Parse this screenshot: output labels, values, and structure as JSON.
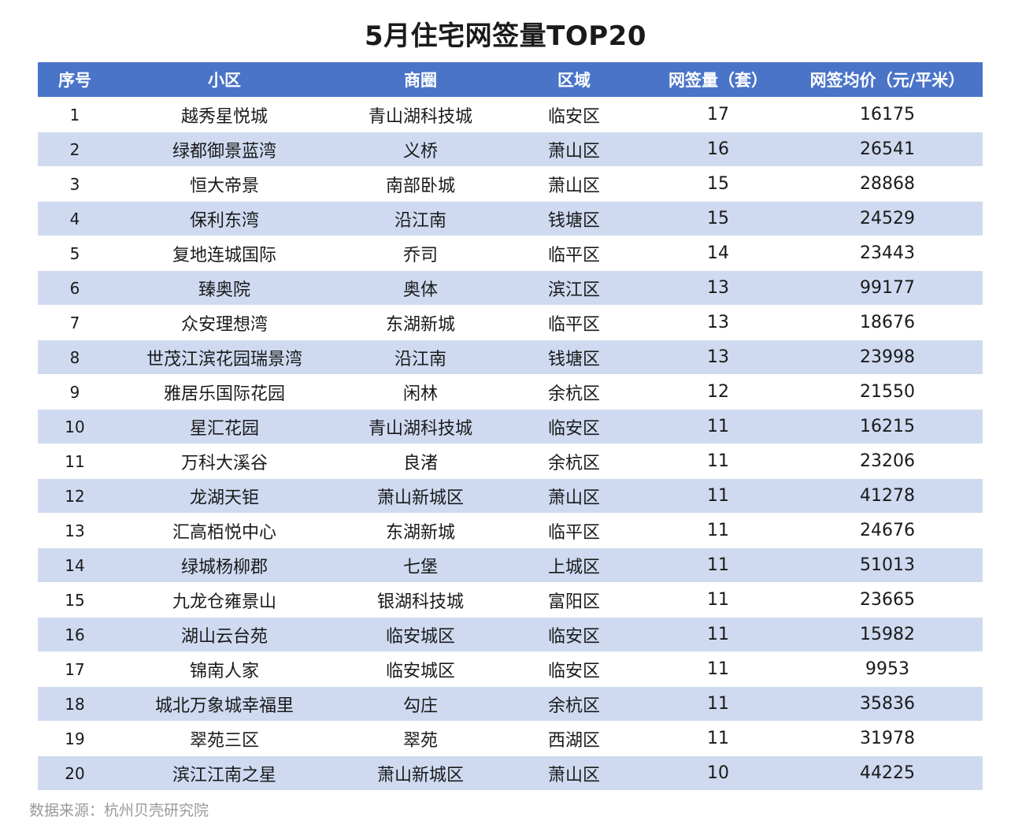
{
  "title": "5月住宅网签量TOP20",
  "header": {
    "col_index": "序号",
    "col_community": "小区",
    "col_district_area": "商圈",
    "col_region": "区域",
    "col_count": "网签量（套）",
    "col_price": "网签均价（元/平米）"
  },
  "rows": [
    {
      "index": "1",
      "community": "越秀星悦城",
      "area": "青山湖科技城",
      "region": "临安区",
      "count": "17",
      "price": "16175"
    },
    {
      "index": "2",
      "community": "绿都御景蓝湾",
      "area": "义桥",
      "region": "萧山区",
      "count": "16",
      "price": "26541"
    },
    {
      "index": "3",
      "community": "恒大帝景",
      "area": "南部卧城",
      "region": "萧山区",
      "count": "15",
      "price": "28868"
    },
    {
      "index": "4",
      "community": "保利东湾",
      "area": "沿江南",
      "region": "钱塘区",
      "count": "15",
      "price": "24529"
    },
    {
      "index": "5",
      "community": "复地连城国际",
      "area": "乔司",
      "region": "临平区",
      "count": "14",
      "price": "23443"
    },
    {
      "index": "6",
      "community": "臻奥院",
      "area": "奥体",
      "region": "滨江区",
      "count": "13",
      "price": "99177"
    },
    {
      "index": "7",
      "community": "众安理想湾",
      "area": "东湖新城",
      "region": "临平区",
      "count": "13",
      "price": "18676"
    },
    {
      "index": "8",
      "community": "世茂江滨花园瑞景湾",
      "area": "沿江南",
      "region": "钱塘区",
      "count": "13",
      "price": "23998"
    },
    {
      "index": "9",
      "community": "雅居乐国际花园",
      "area": "闲林",
      "region": "余杭区",
      "count": "12",
      "price": "21550"
    },
    {
      "index": "10",
      "community": "星汇花园",
      "area": "青山湖科技城",
      "region": "临安区",
      "count": "11",
      "price": "16215"
    },
    {
      "index": "11",
      "community": "万科大溪谷",
      "area": "良渚",
      "region": "余杭区",
      "count": "11",
      "price": "23206"
    },
    {
      "index": "12",
      "community": "龙湖天钜",
      "area": "萧山新城区",
      "region": "萧山区",
      "count": "11",
      "price": "41278"
    },
    {
      "index": "13",
      "community": "汇高栢悦中心",
      "area": "东湖新城",
      "region": "临平区",
      "count": "11",
      "price": "24676"
    },
    {
      "index": "14",
      "community": "绿城杨柳郡",
      "area": "七堡",
      "region": "上城区",
      "count": "11",
      "price": "51013"
    },
    {
      "index": "15",
      "community": "九龙仓雍景山",
      "area": "银湖科技城",
      "region": "富阳区",
      "count": "11",
      "price": "23665"
    },
    {
      "index": "16",
      "community": "湖山云台苑",
      "area": "临安城区",
      "region": "临安区",
      "count": "11",
      "price": "15982"
    },
    {
      "index": "17",
      "community": "锦南人家",
      "area": "临安城区",
      "region": "临安区",
      "count": "11",
      "price": "9953"
    },
    {
      "index": "18",
      "community": "城北万象城幸福里",
      "area": "勾庄",
      "region": "余杭区",
      "count": "11",
      "price": "35836"
    },
    {
      "index": "19",
      "community": "翠苑三区",
      "area": "翠苑",
      "region": "西湖区",
      "count": "11",
      "price": "31978"
    },
    {
      "index": "20",
      "community": "滨江江南之星",
      "area": "萧山新城区",
      "region": "萧山区",
      "count": "10",
      "price": "44225"
    }
  ],
  "source": "数据来源：杭州贝壳研究院"
}
